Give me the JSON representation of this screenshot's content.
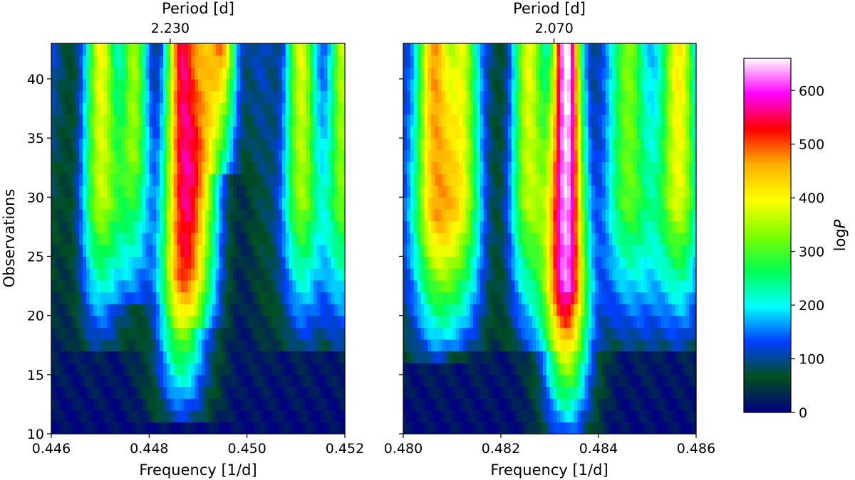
{
  "figure": {
    "domain": "Chart"
  },
  "chart_data": [
    {
      "type": "heatmap",
      "panel": "left",
      "title": "",
      "top_axis_label": "Period [d]",
      "top_tick_label": "2.230",
      "top_tick_frequency": 0.44843,
      "xlabel": "Frequency [1/d]",
      "ylabel": "Observations",
      "xlim": [
        0.446,
        0.452
      ],
      "ylim": [
        10,
        43
      ],
      "xticks": [
        "0.446",
        "0.448",
        "0.450",
        "0.452"
      ],
      "xtick_values": [
        0.446,
        0.448,
        0.45,
        0.452
      ],
      "yticks": [
        "10",
        "15",
        "20",
        "25",
        "30",
        "35",
        "40"
      ],
      "ytick_values": [
        10,
        15,
        20,
        25,
        30,
        35,
        40
      ],
      "peaks": [
        {
          "f": 0.44868,
          "amp": 430,
          "w": 0.00022,
          "onset": 12
        },
        {
          "f": 0.4495,
          "amp": 380,
          "w": 0.0002,
          "onset": 33
        },
        {
          "f": 0.44705,
          "amp": 300,
          "w": 0.00022,
          "onset": 18
        },
        {
          "f": 0.4477,
          "amp": 230,
          "w": 0.00018,
          "onset": 22
        },
        {
          "f": 0.4491,
          "amp": 250,
          "w": 0.00018,
          "onset": 20
        },
        {
          "f": 0.4511,
          "amp": 270,
          "w": 0.00022,
          "onset": 18
        },
        {
          "f": 0.45195,
          "amp": 250,
          "w": 0.0002,
          "onset": 18
        }
      ]
    },
    {
      "type": "heatmap",
      "panel": "right",
      "title": "",
      "top_axis_label": "Period [d]",
      "top_tick_label": "2.070",
      "top_tick_frequency": 0.48309,
      "xlabel": "Frequency [1/d]",
      "ylabel": "",
      "xlim": [
        0.48,
        0.486
      ],
      "ylim": [
        10,
        43
      ],
      "xticks": [
        "0.480",
        "0.482",
        "0.484",
        "0.486"
      ],
      "xtick_values": [
        0.48,
        0.482,
        0.484,
        0.486
      ],
      "yticks": [],
      "ytick_values": [
        10,
        15,
        20,
        25,
        30,
        35,
        40
      ],
      "peaks": [
        {
          "f": 0.48335,
          "amp": 560,
          "w": 0.0002,
          "onset": 11
        },
        {
          "f": 0.4806,
          "amp": 360,
          "w": 0.00024,
          "onset": 17
        },
        {
          "f": 0.4812,
          "amp": 300,
          "w": 0.0002,
          "onset": 18
        },
        {
          "f": 0.4826,
          "amp": 290,
          "w": 0.00022,
          "onset": 18
        },
        {
          "f": 0.4846,
          "amp": 270,
          "w": 0.00022,
          "onset": 18
        },
        {
          "f": 0.4856,
          "amp": 330,
          "w": 0.00024,
          "onset": 18
        }
      ]
    }
  ],
  "colorbar": {
    "label": "logP",
    "label_main": "log",
    "label_italic": "P",
    "range": [
      0,
      660
    ],
    "ticks": [
      "0",
      "100",
      "200",
      "300",
      "400",
      "500",
      "600"
    ],
    "tick_values": [
      0,
      100,
      200,
      300,
      400,
      500,
      600
    ],
    "colormap": "gist_ncar",
    "colormap_stops": [
      "#000080",
      "#005020",
      "#003fff",
      "#00ffff",
      "#00ff50",
      "#80ff00",
      "#ffff00",
      "#ffb000",
      "#ff0000",
      "#ff00ff",
      "#ffffff"
    ]
  }
}
